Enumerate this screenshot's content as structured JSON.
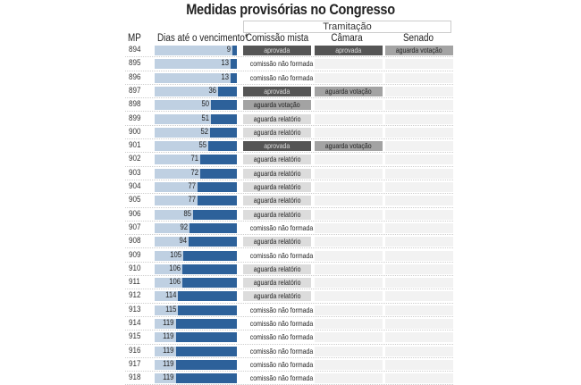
{
  "chart_data": {
    "type": "table",
    "title": "Medidas provisórias no Congresso",
    "group_header": "Tramitação",
    "columns": [
      "MP",
      "Dias até o vencimento*",
      "Comissão mista",
      "Câmara",
      "Senado"
    ],
    "bar_scale": [
      0,
      160
    ],
    "rows": [
      {
        "mp": "894",
        "dias": 9,
        "comissao": "aprovada",
        "camara": "aprovada",
        "senado": "aguarda votação"
      },
      {
        "mp": "895",
        "dias": 13,
        "comissao": "comissão não formada",
        "camara": "",
        "senado": ""
      },
      {
        "mp": "896",
        "dias": 13,
        "comissao": "comissão não formada",
        "camara": "",
        "senado": ""
      },
      {
        "mp": "897",
        "dias": 36,
        "comissao": "aprovada",
        "camara": "aguarda votação",
        "senado": ""
      },
      {
        "mp": "898",
        "dias": 50,
        "comissao": "aguarda votação",
        "camara": "",
        "senado": ""
      },
      {
        "mp": "899",
        "dias": 51,
        "comissao": "aguarda relatório",
        "camara": "",
        "senado": ""
      },
      {
        "mp": "900",
        "dias": 52,
        "comissao": "aguarda relatório",
        "camara": "",
        "senado": ""
      },
      {
        "mp": "901",
        "dias": 55,
        "comissao": "aprovada",
        "camara": "aguarda votação",
        "senado": ""
      },
      {
        "mp": "902",
        "dias": 71,
        "comissao": "aguarda relatório",
        "camara": "",
        "senado": ""
      },
      {
        "mp": "903",
        "dias": 72,
        "comissao": "aguarda relatório",
        "camara": "",
        "senado": ""
      },
      {
        "mp": "904",
        "dias": 77,
        "comissao": "aguarda relatório",
        "camara": "",
        "senado": ""
      },
      {
        "mp": "905",
        "dias": 77,
        "comissao": "aguarda relatório",
        "camara": "",
        "senado": ""
      },
      {
        "mp": "906",
        "dias": 85,
        "comissao": "aguarda relatório",
        "camara": "",
        "senado": ""
      },
      {
        "mp": "907",
        "dias": 92,
        "comissao": "comissão não formada",
        "camara": "",
        "senado": ""
      },
      {
        "mp": "908",
        "dias": 94,
        "comissao": "aguarda relatório",
        "camara": "",
        "senado": ""
      },
      {
        "mp": "909",
        "dias": 105,
        "comissao": "comissão não formada",
        "camara": "",
        "senado": ""
      },
      {
        "mp": "910",
        "dias": 106,
        "comissao": "aguarda relatório",
        "camara": "",
        "senado": ""
      },
      {
        "mp": "911",
        "dias": 106,
        "comissao": "aguarda relatório",
        "camara": "",
        "senado": ""
      },
      {
        "mp": "912",
        "dias": 114,
        "comissao": "aguarda relatório",
        "camara": "",
        "senado": ""
      },
      {
        "mp": "913",
        "dias": 115,
        "comissao": "comissão não formada",
        "camara": "",
        "senado": ""
      },
      {
        "mp": "914",
        "dias": 119,
        "comissao": "comissão não formada",
        "camara": "",
        "senado": ""
      },
      {
        "mp": "915",
        "dias": 119,
        "comissao": "comissão não formada",
        "camara": "",
        "senado": ""
      },
      {
        "mp": "916",
        "dias": 119,
        "comissao": "comissão não formada",
        "camara": "",
        "senado": ""
      },
      {
        "mp": "917",
        "dias": 119,
        "comissao": "comissão não formada",
        "camara": "",
        "senado": ""
      },
      {
        "mp": "918",
        "dias": 119,
        "comissao": "comissão não formada",
        "camara": "",
        "senado": ""
      }
    ],
    "colors": {
      "bar_background": "#bfd0e2",
      "bar_fill": "#2d619a",
      "aprovada": "#555555",
      "aguarda votação": "#a3a3a3",
      "aguarda relatório": "#dcdcdc",
      "empty": "#f2f2f2"
    }
  }
}
